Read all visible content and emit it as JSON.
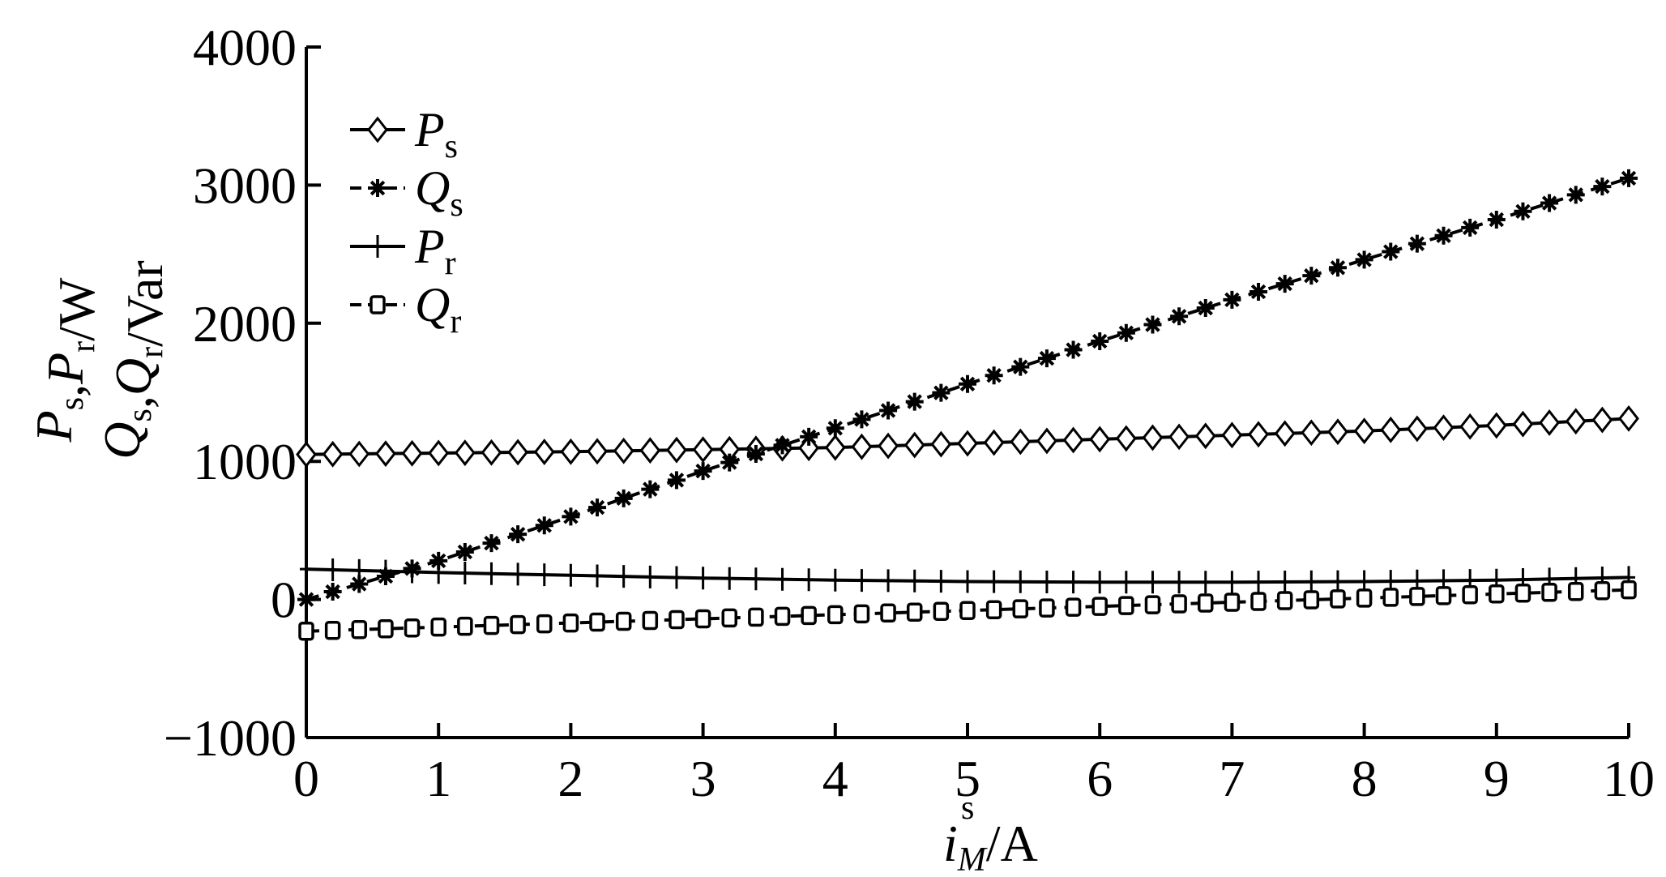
{
  "chart_data": {
    "type": "line",
    "xlabel": {
      "main": "i",
      "sub": "M",
      "sup": "s",
      "unit": "/A"
    },
    "ylabel": {
      "line1": [
        {
          "t": "P",
          "s": "s"
        },
        {
          "t": ",P",
          "s": "r"
        },
        {
          "t": "/W",
          "s": ""
        }
      ],
      "line2": [
        {
          "t": "Q",
          "s": "s"
        },
        {
          "t": ",Q",
          "s": "r"
        },
        {
          "t": "/Var",
          "s": ""
        }
      ]
    },
    "xlim": [
      0,
      10
    ],
    "ylim": [
      -1000,
      4000
    ],
    "xticks": [
      0,
      1,
      2,
      3,
      4,
      5,
      6,
      7,
      8,
      9,
      10
    ],
    "yticks": [
      -1000,
      0,
      1000,
      2000,
      3000,
      4000
    ],
    "xtick_labels": [
      "0",
      "1",
      "2",
      "3",
      "4",
      "5",
      "6",
      "7",
      "8",
      "9",
      "10"
    ],
    "ytick_labels": [
      "−1000",
      "0",
      "1000",
      "2000",
      "3000",
      "4000"
    ],
    "grid": false,
    "legend_position": "top-left",
    "series": [
      {
        "name": "P",
        "sub": "s",
        "marker": "diamond",
        "dash": "solid",
        "x": [
          0,
          1,
          2,
          3,
          4,
          5,
          6,
          7,
          8,
          9,
          10
        ],
        "y": [
          1050,
          1060,
          1070,
          1085,
          1100,
          1130,
          1160,
          1190,
          1220,
          1260,
          1310
        ]
      },
      {
        "name": "Q",
        "sub": "s",
        "marker": "star",
        "dash": "dashed",
        "x": [
          0,
          1,
          2,
          3,
          4,
          5,
          6,
          7,
          8,
          9,
          10
        ],
        "y": [
          0,
          280,
          600,
          930,
          1240,
          1560,
          1870,
          2170,
          2460,
          2750,
          3050
        ]
      },
      {
        "name": "P",
        "sub": "r",
        "marker": "plus",
        "dash": "solid",
        "x": [
          0,
          1,
          2,
          3,
          4,
          5,
          6,
          7,
          8,
          9,
          10
        ],
        "y": [
          220,
          195,
          175,
          155,
          140,
          130,
          125,
          125,
          130,
          140,
          160
        ]
      },
      {
        "name": "Q",
        "sub": "r",
        "marker": "square",
        "dash": "dashed",
        "x": [
          0,
          1,
          2,
          3,
          4,
          5,
          6,
          7,
          8,
          9,
          10
        ],
        "y": [
          -230,
          -200,
          -170,
          -140,
          -110,
          -80,
          -50,
          -20,
          10,
          40,
          70
        ]
      }
    ]
  }
}
